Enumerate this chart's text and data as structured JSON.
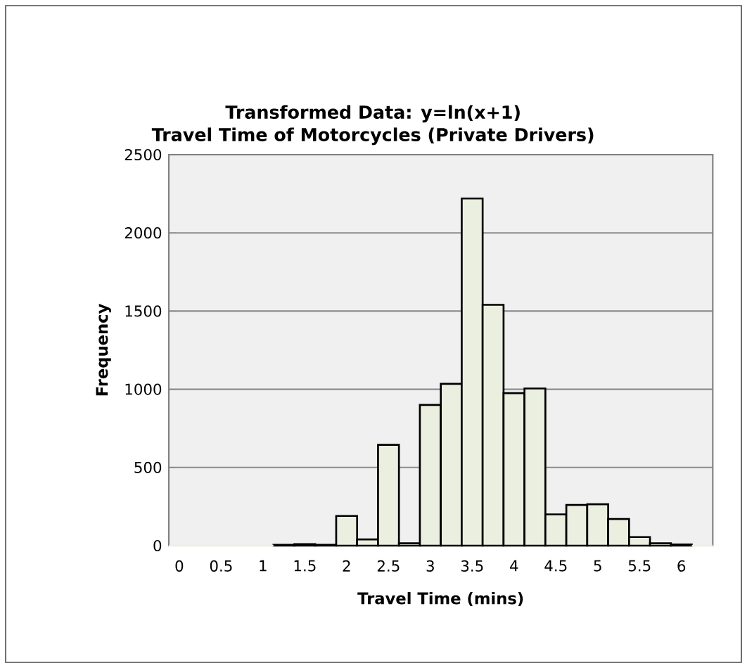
{
  "chart_data": {
    "type": "bar",
    "title": "Transformed Data: y=ln(x+1)",
    "subtitle": "Travel Time of Motorcycles (Private Drivers)",
    "xlabel": "Travel Time (mins)",
    "ylabel": "Frequency",
    "categories": [
      "0",
      null,
      "0.5",
      null,
      "1",
      null,
      "1.5",
      null,
      "2",
      null,
      "2.5",
      null,
      "3",
      null,
      "3.5",
      null,
      "4",
      null,
      "4.5",
      null,
      "5",
      null,
      "5.5",
      null,
      "6",
      null
    ],
    "values": [
      0,
      0,
      0,
      0,
      0,
      5,
      10,
      5,
      190,
      40,
      645,
      15,
      900,
      1035,
      2220,
      1540,
      975,
      1005,
      200,
      260,
      265,
      170,
      55,
      15,
      8,
      0
    ],
    "color": "#ebefdf",
    "ylim": [
      0,
      2500
    ],
    "yticks": [
      0,
      500,
      1000,
      1500,
      2000,
      2500
    ],
    "grid": "y"
  }
}
